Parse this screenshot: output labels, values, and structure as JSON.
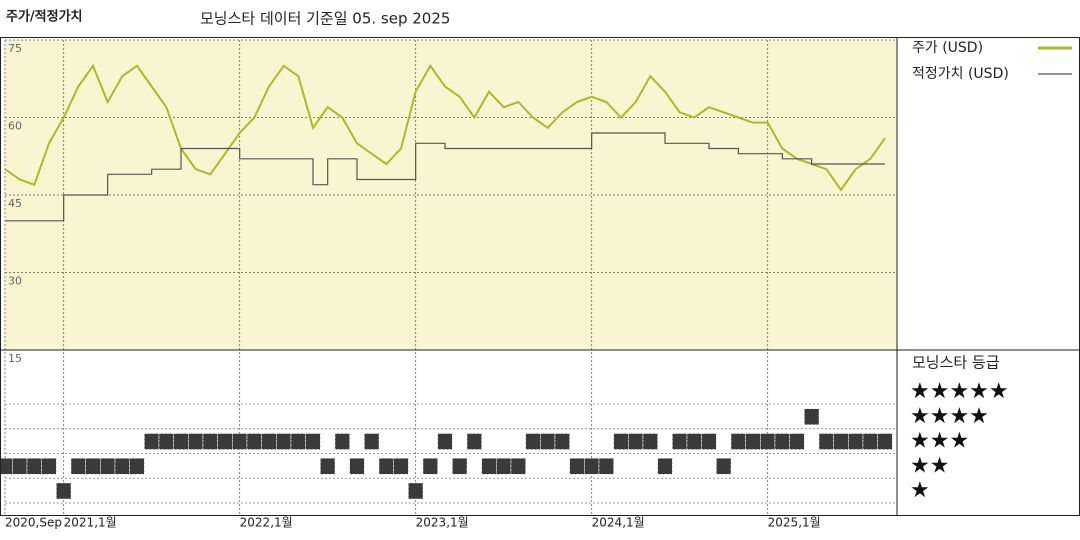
{
  "chart_data": [
    {
      "type": "line",
      "title": "주가/적정가치",
      "subtitle": "모닝스타 데이터 기준일 05. sep 2025",
      "x": [
        "2020-09",
        "2020-10",
        "2020-11",
        "2020-12",
        "2021-01",
        "2021-02",
        "2021-03",
        "2021-04",
        "2021-05",
        "2021-06",
        "2021-07",
        "2021-08",
        "2021-09",
        "2021-10",
        "2021-11",
        "2021-12",
        "2022-01",
        "2022-02",
        "2022-03",
        "2022-04",
        "2022-05",
        "2022-06",
        "2022-07",
        "2022-08",
        "2022-09",
        "2022-10",
        "2022-11",
        "2022-12",
        "2023-01",
        "2023-02",
        "2023-03",
        "2023-04",
        "2023-05",
        "2023-06",
        "2023-07",
        "2023-08",
        "2023-09",
        "2023-10",
        "2023-11",
        "2023-12",
        "2024-01",
        "2024-02",
        "2024-03",
        "2024-04",
        "2024-05",
        "2024-06",
        "2024-07",
        "2024-08",
        "2024-09",
        "2024-10",
        "2024-11",
        "2024-12",
        "2025-01",
        "2025-02",
        "2025-03",
        "2025-04",
        "2025-05",
        "2025-06",
        "2025-07",
        "2025-08",
        "2025-09"
      ],
      "series": [
        {
          "name": "주가 (USD)",
          "color": "#b3b626",
          "values": [
            50,
            48,
            47,
            55,
            60,
            66,
            70,
            63,
            68,
            70,
            66,
            62,
            54,
            50,
            49,
            53,
            57,
            60,
            66,
            70,
            68,
            58,
            62,
            60,
            55,
            53,
            51,
            54,
            65,
            70,
            66,
            64,
            60,
            65,
            62,
            63,
            60,
            58,
            61,
            63,
            64,
            63,
            60,
            63,
            68,
            65,
            61,
            60,
            62,
            61,
            60,
            59,
            59,
            54,
            52,
            51,
            50,
            46,
            50,
            52,
            56
          ]
        },
        {
          "name": "적정가치 (USD)",
          "color": "#555555",
          "values": [
            40,
            40,
            40,
            40,
            45,
            45,
            45,
            49,
            49,
            49,
            50,
            50,
            54,
            54,
            54,
            54,
            52,
            52,
            52,
            52,
            52,
            47,
            52,
            52,
            48,
            48,
            48,
            48,
            55,
            55,
            54,
            54,
            54,
            54,
            54,
            54,
            54,
            54,
            54,
            54,
            57,
            57,
            57,
            57,
            57,
            55,
            55,
            55,
            54,
            54,
            53,
            53,
            53,
            52,
            52,
            51,
            51,
            51,
            51,
            51,
            51
          ]
        }
      ],
      "ylim": [
        15,
        75
      ],
      "yticks": [
        75,
        60,
        45,
        30,
        15
      ],
      "grid": true,
      "xticks": [
        {
          "value": "2020-09",
          "label": "2020,Sep"
        },
        {
          "value": "2021-01",
          "label": "2021,1월"
        },
        {
          "value": "2022-01",
          "label": "2022,1월"
        },
        {
          "value": "2023-01",
          "label": "2023,1월"
        },
        {
          "value": "2024-01",
          "label": "2024,1월"
        },
        {
          "value": "2025-01",
          "label": "2025,1월"
        }
      ],
      "background": "#f8f5d0"
    },
    {
      "type": "rating",
      "title": "모닝스타 등급",
      "color": "#3a3a3a",
      "values": [
        2,
        2,
        2,
        2,
        1,
        2,
        2,
        2,
        2,
        2,
        3,
        3,
        3,
        3,
        3,
        3,
        3,
        3,
        3,
        3,
        3,
        3,
        2,
        3,
        2,
        3,
        2,
        2,
        1,
        2,
        3,
        2,
        3,
        2,
        2,
        2,
        3,
        3,
        3,
        2,
        2,
        2,
        3,
        3,
        3,
        2,
        3,
        3,
        3,
        2,
        3,
        3,
        3,
        3,
        3,
        4,
        3,
        3,
        3,
        3,
        3
      ],
      "yticks": [
        {
          "value": 5,
          "label": "★★★★★"
        },
        {
          "value": 4,
          "label": "★★★★"
        },
        {
          "value": 3,
          "label": "★★★"
        },
        {
          "value": 2,
          "label": "★★"
        },
        {
          "value": 1,
          "label": "★"
        }
      ]
    }
  ]
}
